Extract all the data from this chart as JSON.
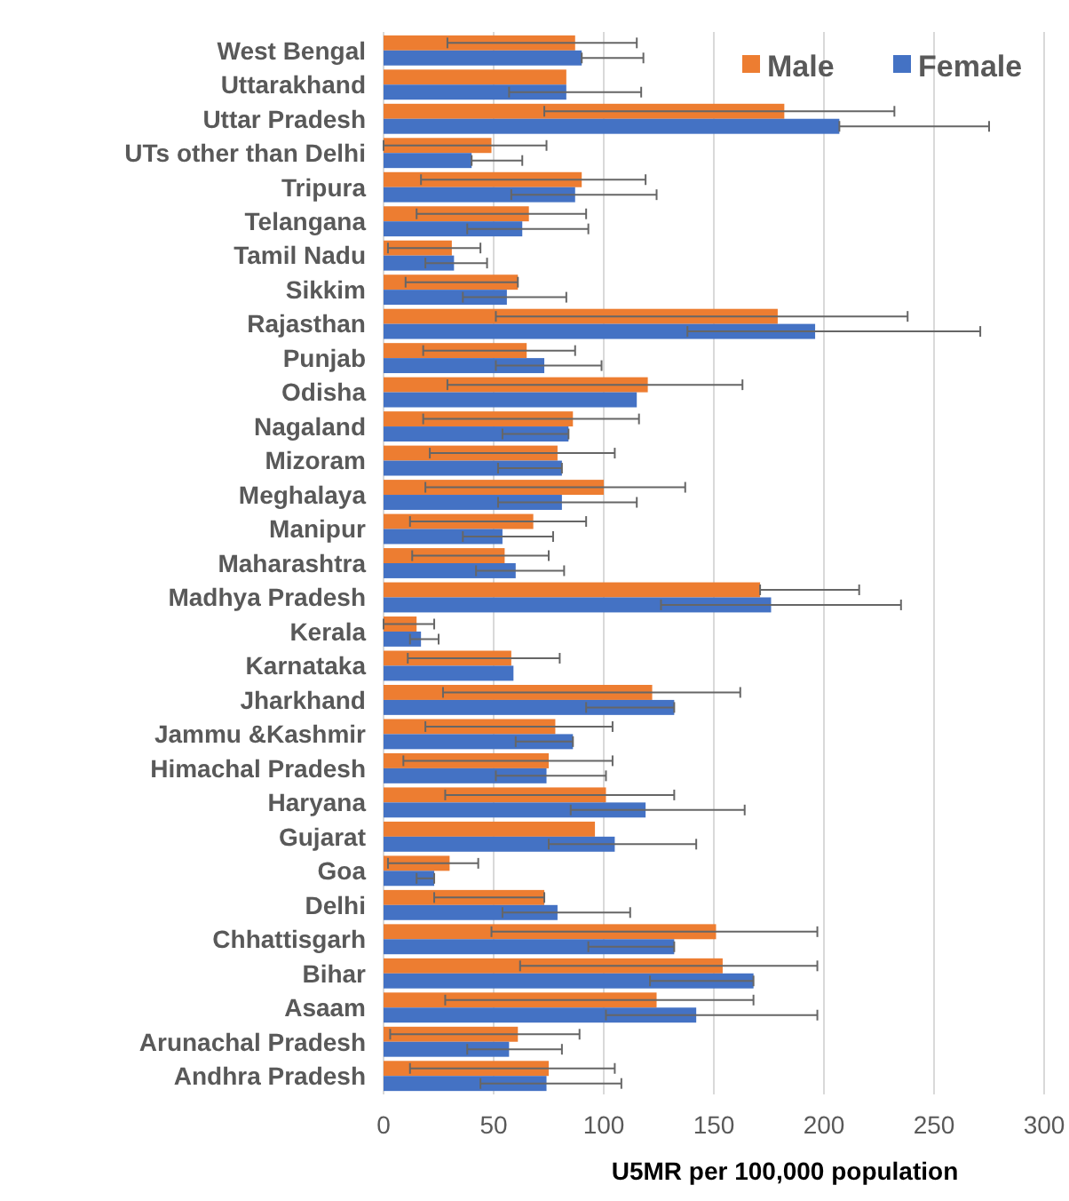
{
  "chart_data": {
    "type": "bar",
    "orientation": "horizontal",
    "xlabel": "U5MR per 100,000 population",
    "categories": [
      "West Bengal",
      "Uttarakhand",
      "Uttar Pradesh",
      "UTs other than Delhi",
      "Tripura",
      "Telangana",
      "Tamil Nadu",
      "Sikkim",
      "Rajasthan",
      "Punjab",
      "Odisha",
      "Nagaland",
      "Mizoram",
      "Meghalaya",
      "Manipur",
      "Maharashtra",
      "Madhya Pradesh",
      "Kerala",
      "Karnataka",
      "Jharkhand",
      "Jammu &Kashmir",
      "Himachal Pradesh",
      "Haryana",
      "Gujarat",
      "Goa",
      "Delhi",
      "Chhattisgarh",
      "Bihar",
      "Asaam",
      "Arunachal Pradesh",
      "Andhra Pradesh"
    ],
    "series": [
      {
        "name": "Male",
        "color": "#ed7d31",
        "values": [
          87,
          83,
          182,
          49,
          90,
          66,
          31,
          61,
          179,
          65,
          120,
          86,
          79,
          100,
          68,
          55,
          171,
          15,
          58,
          122,
          78,
          75,
          101,
          96,
          30,
          73,
          151,
          154,
          124,
          61,
          75
        ],
        "errors": [
          [
            29,
            115
          ],
          null,
          [
            73,
            232
          ],
          [
            0,
            74
          ],
          [
            17,
            119
          ],
          [
            15,
            92
          ],
          [
            2,
            44
          ],
          [
            10,
            61
          ],
          [
            51,
            238
          ],
          [
            18,
            87
          ],
          [
            29,
            163
          ],
          [
            18,
            116
          ],
          [
            21,
            105
          ],
          [
            19,
            137
          ],
          [
            12,
            92
          ],
          [
            13,
            75
          ],
          [
            171,
            216
          ],
          [
            0,
            23
          ],
          [
            11,
            80
          ],
          [
            27,
            162
          ],
          [
            19,
            104
          ],
          [
            9,
            104
          ],
          [
            28,
            132
          ],
          null,
          [
            2,
            43
          ],
          [
            23,
            73
          ],
          [
            49,
            197
          ],
          [
            62,
            197
          ],
          [
            28,
            168
          ],
          [
            3,
            89
          ],
          [
            12,
            105
          ]
        ]
      },
      {
        "name": "Female",
        "color": "#4472c4",
        "values": [
          90,
          83,
          207,
          40,
          87,
          63,
          32,
          56,
          196,
          73,
          115,
          84,
          81,
          81,
          54,
          60,
          176,
          17,
          59,
          132,
          86,
          74,
          119,
          105,
          23,
          79,
          132,
          168,
          142,
          57,
          74
        ],
        "errors": [
          [
            90,
            118
          ],
          [
            57,
            117
          ],
          [
            207,
            275
          ],
          [
            40,
            63
          ],
          [
            58,
            124
          ],
          [
            38,
            93
          ],
          [
            19,
            47
          ],
          [
            36,
            83
          ],
          [
            138,
            271
          ],
          [
            51,
            99
          ],
          null,
          [
            54,
            84
          ],
          [
            52,
            81
          ],
          [
            52,
            115
          ],
          [
            36,
            77
          ],
          [
            42,
            82
          ],
          [
            126,
            235
          ],
          [
            12,
            25
          ],
          null,
          [
            92,
            132
          ],
          [
            60,
            86
          ],
          [
            51,
            101
          ],
          [
            85,
            164
          ],
          [
            75,
            142
          ],
          [
            15,
            23
          ],
          [
            54,
            112
          ],
          [
            93,
            132
          ],
          [
            121,
            168
          ],
          [
            101,
            197
          ],
          [
            38,
            81
          ],
          [
            44,
            108
          ]
        ]
      }
    ],
    "xlim": [
      0,
      300
    ],
    "xticks": [
      0,
      50,
      100,
      150,
      200,
      250,
      300
    ],
    "grid": "x",
    "legend": "top right"
  }
}
